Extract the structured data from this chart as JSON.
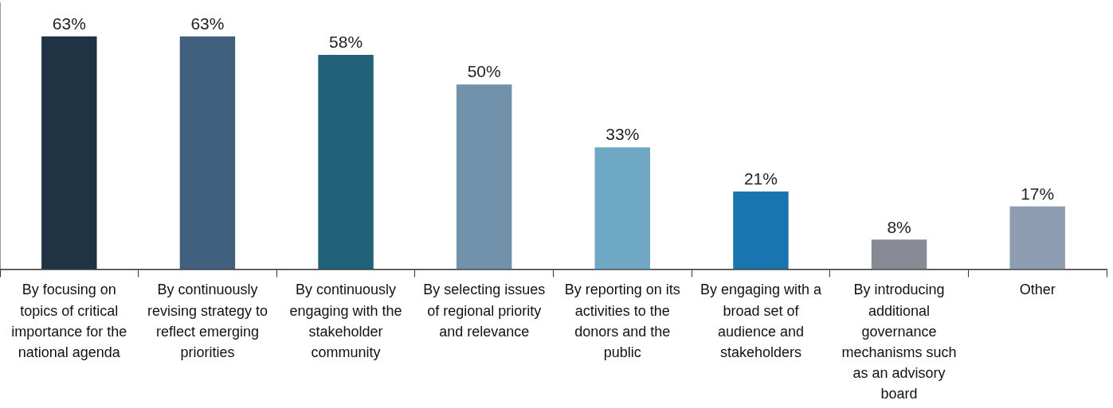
{
  "chart_data": {
    "type": "bar",
    "categories": [
      "By focusing on topics of critical importance for the national agenda",
      "By continuously revising strategy to reflect emerging priorities",
      "By continuously engaging with the stakeholder community",
      "By selecting issues of regional priority and relevance",
      "By reporting on its activities to the donors and the public",
      "By engaging with a broad set of audience and stakeholders",
      "By introducing additional governance mechanisms such as an advisory board",
      "Other"
    ],
    "values": [
      63,
      63,
      58,
      50,
      33,
      21,
      8,
      17
    ],
    "colors": [
      "#1f3344",
      "#41607e",
      "#216279",
      "#7291aa",
      "#6ea8c5",
      "#1a74b0",
      "#878a94",
      "#8f9db2"
    ],
    "ylim": [
      0,
      72
    ],
    "data_labels": true,
    "value_labels": [
      "63%",
      "63%",
      "58%",
      "50%",
      "33%",
      "21%",
      "8%",
      "17%"
    ],
    "tick_labels": "x",
    "grid": false,
    "legend": false
  }
}
